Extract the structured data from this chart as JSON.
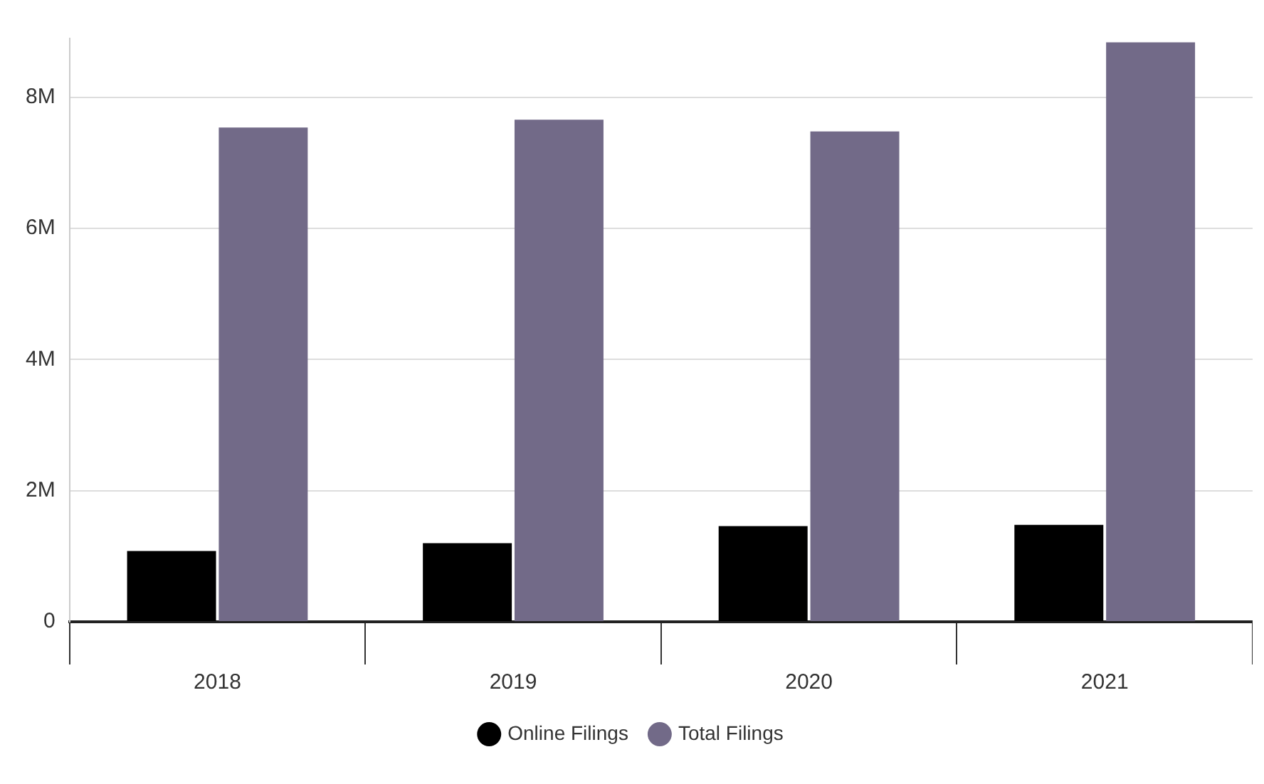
{
  "chart_data": {
    "type": "bar",
    "categories": [
      "2018",
      "2019",
      "2020",
      "2021"
    ],
    "series": [
      {
        "name": "Online Filings",
        "color": "#000000",
        "values": [
          1.08,
          1.2,
          1.46,
          1.48
        ]
      },
      {
        "name": "Total Filings",
        "color": "#726a88",
        "values": [
          7.54,
          7.66,
          7.48,
          8.84
        ]
      }
    ],
    "ylim": [
      0,
      8.9
    ],
    "yticks": [
      {
        "value": 0,
        "label": "0"
      },
      {
        "value": 2,
        "label": "2M"
      },
      {
        "value": 4,
        "label": "4M"
      },
      {
        "value": 6,
        "label": "6M"
      },
      {
        "value": 8,
        "label": "8M"
      }
    ],
    "grid": "y",
    "legend": "bottom"
  }
}
